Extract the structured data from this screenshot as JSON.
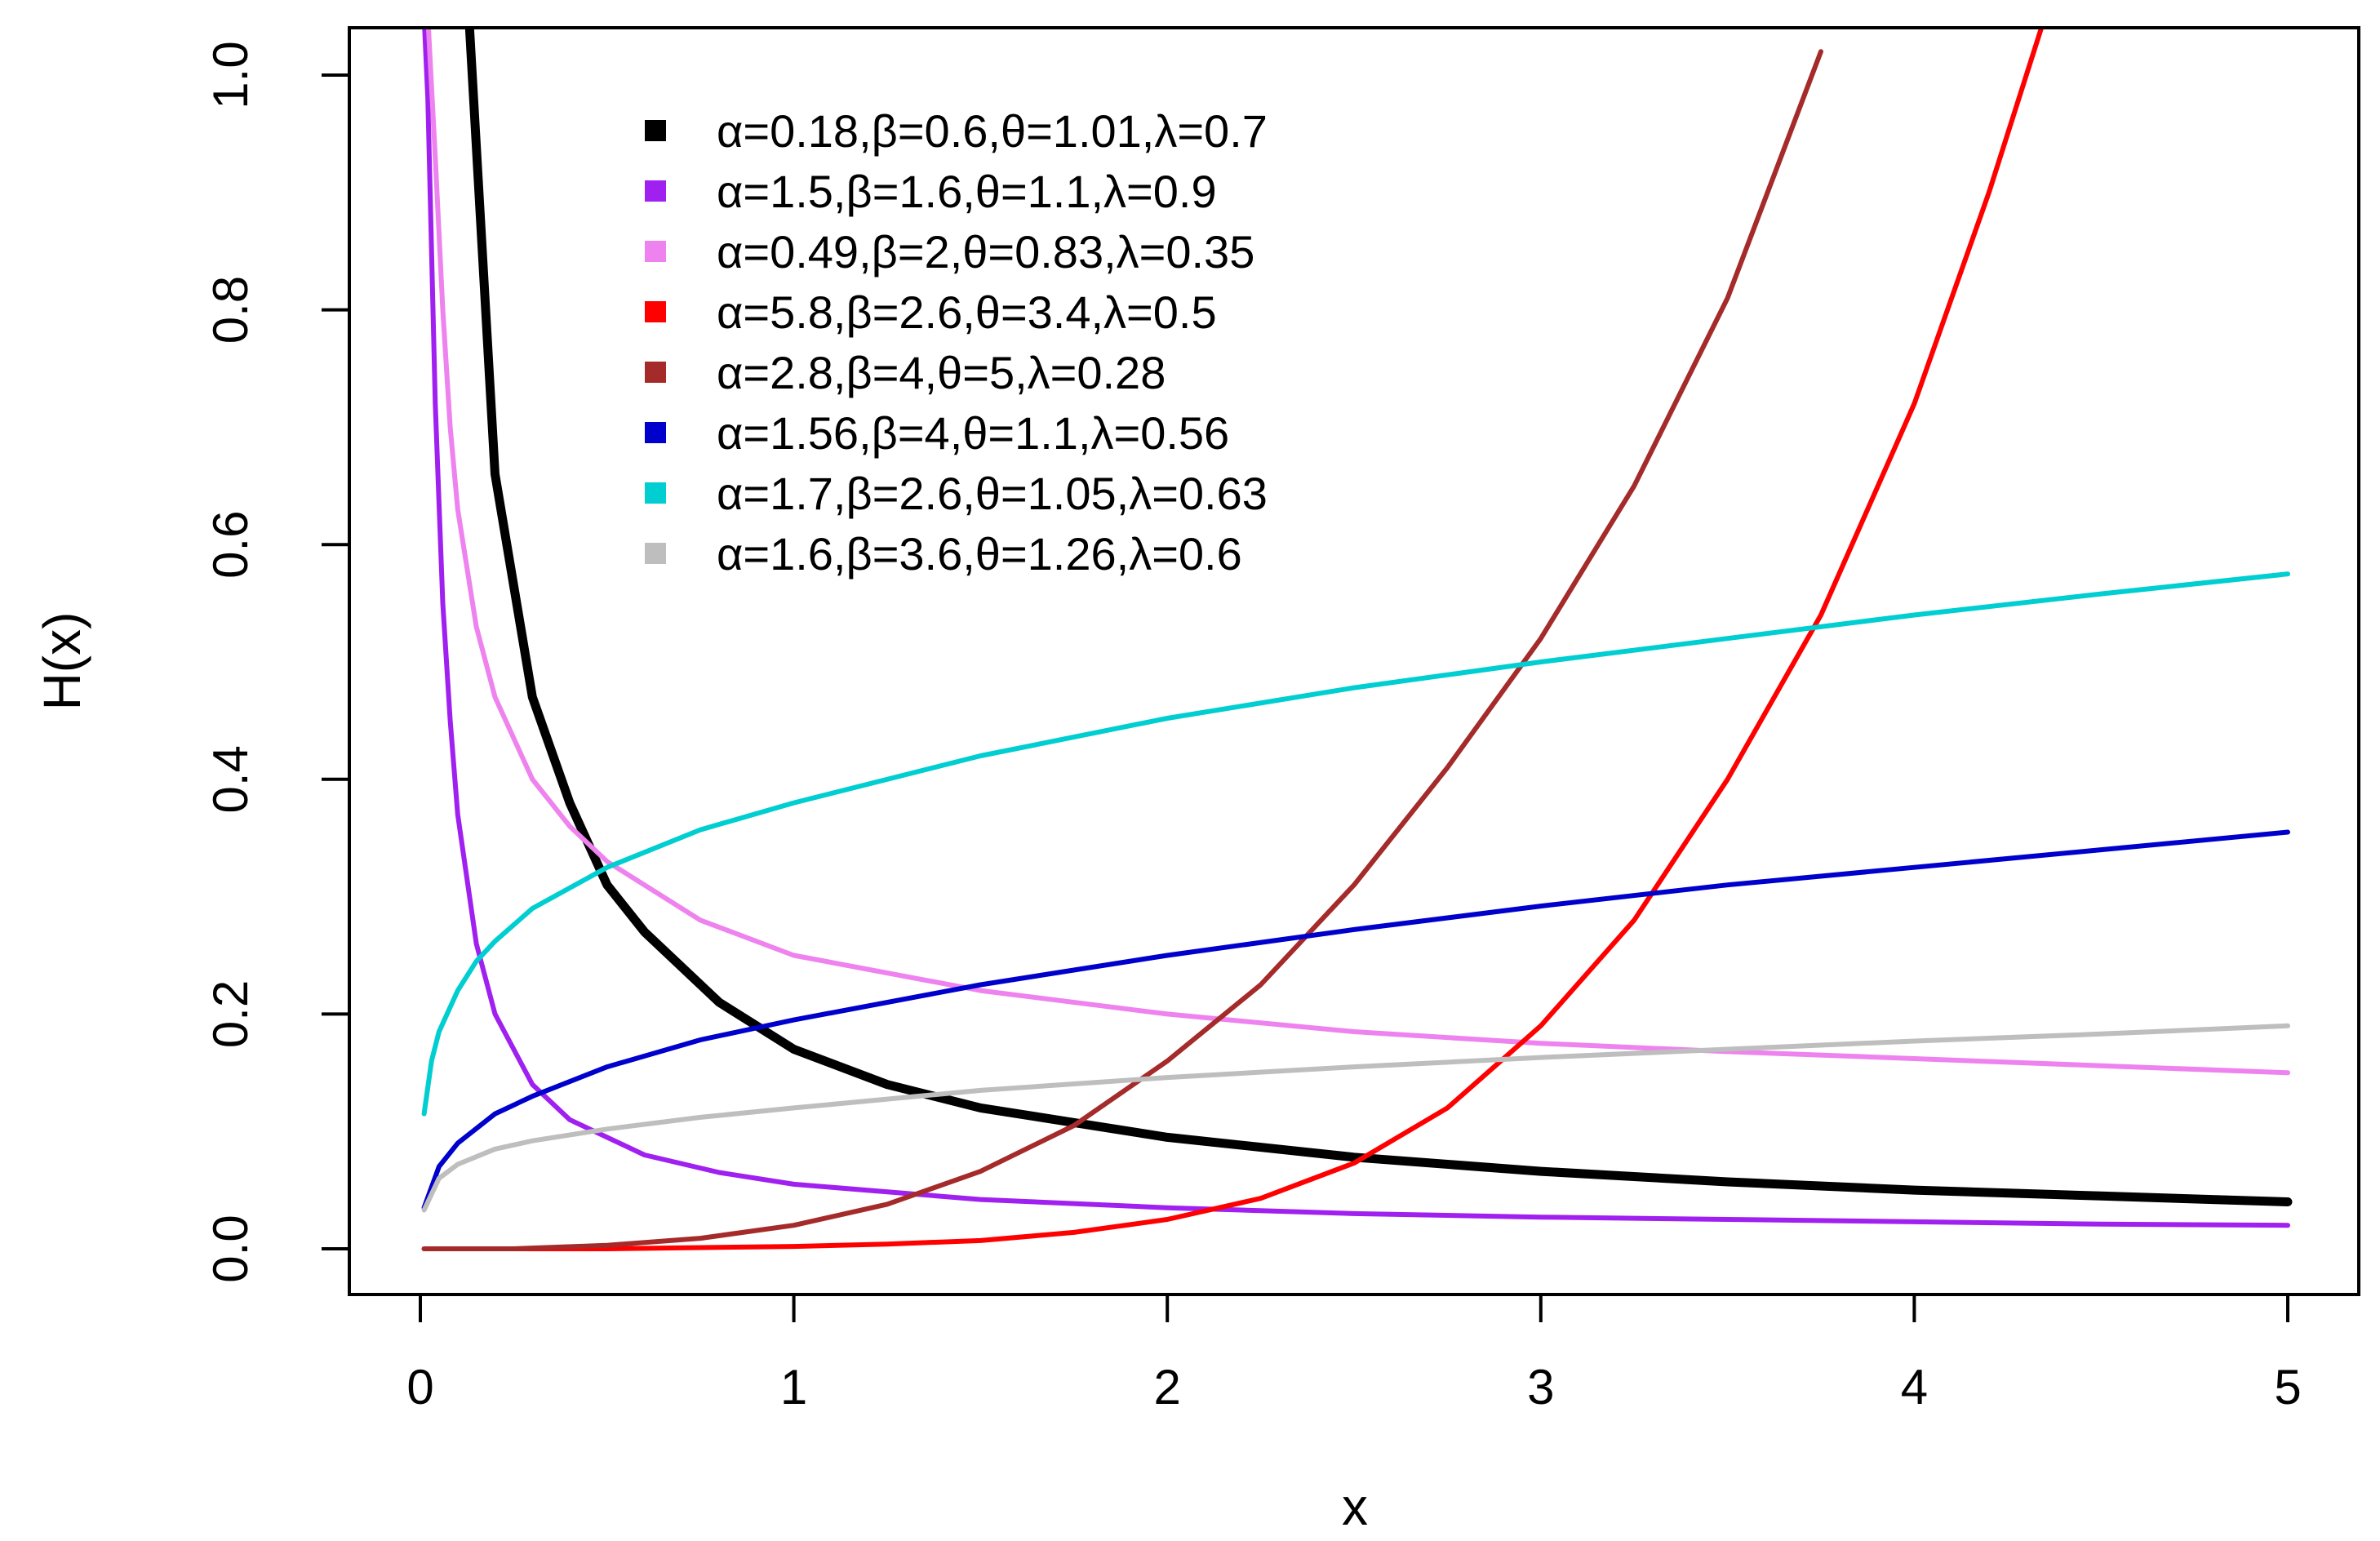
{
  "chart_data": {
    "type": "line",
    "xlabel": "x",
    "ylabel": "H(x)",
    "xlim": [
      0,
      5
    ],
    "ylim": [
      0,
      1
    ],
    "x_ticks": [
      "0",
      "1",
      "2",
      "3",
      "4",
      "5"
    ],
    "y_ticks": [
      "0.0",
      "0.2",
      "0.4",
      "0.6",
      "0.8",
      "1.0"
    ],
    "legend_position": "top",
    "series": [
      {
        "name": "α=0.18,β=0.6,θ=1.01,λ=0.7",
        "color": "#000000",
        "x": [
          0.13,
          0.2,
          0.3,
          0.4,
          0.5,
          0.6,
          0.8,
          1.0,
          1.25,
          1.5,
          2.0,
          2.5,
          3.0,
          3.5,
          4.0,
          4.5,
          5.0
        ],
        "y": [
          1.05,
          0.66,
          0.47,
          0.38,
          0.31,
          0.27,
          0.21,
          0.17,
          0.14,
          0.12,
          0.095,
          0.078,
          0.066,
          0.057,
          0.05,
          0.045,
          0.04
        ]
      },
      {
        "name": "α=1.5,β=1.6,θ=1.1,λ=0.9",
        "color": "#a020f0",
        "x": [
          0.01,
          0.02,
          0.04,
          0.06,
          0.08,
          0.1,
          0.15,
          0.2,
          0.3,
          0.4,
          0.6,
          0.8,
          1.0,
          1.5,
          2.0,
          2.5,
          3.0,
          3.5,
          4.0,
          4.5,
          5.0
        ],
        "y": [
          1.05,
          0.98,
          0.72,
          0.55,
          0.45,
          0.37,
          0.26,
          0.2,
          0.14,
          0.11,
          0.08,
          0.065,
          0.055,
          0.042,
          0.035,
          0.03,
          0.027,
          0.025,
          0.023,
          0.021,
          0.02
        ]
      },
      {
        "name": "α=0.49,β=2,θ=0.83,λ=0.35",
        "color": "#ee82ee",
        "x": [
          0.02,
          0.04,
          0.06,
          0.08,
          0.1,
          0.15,
          0.2,
          0.3,
          0.4,
          0.5,
          0.75,
          1.0,
          1.5,
          2.0,
          2.5,
          3.0,
          3.5,
          4.0,
          4.5,
          5.0
        ],
        "y": [
          1.05,
          0.93,
          0.8,
          0.7,
          0.63,
          0.53,
          0.47,
          0.4,
          0.36,
          0.33,
          0.28,
          0.25,
          0.22,
          0.2,
          0.185,
          0.175,
          0.168,
          0.162,
          0.156,
          0.15
        ]
      },
      {
        "name": "α=5.8,β=2.6,θ=3.4,λ=0.5",
        "color": "#ff0000",
        "x": [
          0.01,
          0.5,
          1.0,
          1.25,
          1.5,
          1.75,
          2.0,
          2.25,
          2.5,
          2.75,
          3.0,
          3.25,
          3.5,
          3.75,
          4.0,
          4.2,
          4.35
        ],
        "y": [
          0.0,
          0.0,
          0.002,
          0.004,
          0.007,
          0.014,
          0.025,
          0.043,
          0.073,
          0.12,
          0.19,
          0.28,
          0.4,
          0.54,
          0.72,
          0.9,
          1.05
        ]
      },
      {
        "name": "α=2.8,β=4,θ=5,λ=0.28",
        "color": "#a52a2a",
        "x": [
          0.01,
          0.25,
          0.5,
          0.75,
          1.0,
          1.25,
          1.5,
          1.75,
          2.0,
          2.25,
          2.5,
          2.75,
          3.0,
          3.25,
          3.5,
          3.75
        ],
        "y": [
          0.0,
          0.0,
          0.003,
          0.009,
          0.02,
          0.038,
          0.066,
          0.105,
          0.16,
          0.225,
          0.31,
          0.41,
          0.52,
          0.65,
          0.81,
          1.02
        ]
      },
      {
        "name": "α=1.56,β=4,θ=1.1,λ=0.56",
        "color": "#0000cd",
        "x": [
          0.01,
          0.05,
          0.1,
          0.2,
          0.3,
          0.5,
          0.75,
          1.0,
          1.5,
          2.0,
          2.5,
          3.0,
          3.5,
          4.0,
          4.5,
          5.0
        ],
        "y": [
          0.035,
          0.07,
          0.09,
          0.115,
          0.13,
          0.155,
          0.178,
          0.195,
          0.225,
          0.25,
          0.272,
          0.292,
          0.31,
          0.325,
          0.34,
          0.355
        ]
      },
      {
        "name": "α=1.7,β=2.6,θ=1.05,λ=0.63",
        "color": "#00ced1",
        "x": [
          0.01,
          0.03,
          0.05,
          0.1,
          0.15,
          0.2,
          0.3,
          0.5,
          0.75,
          1.0,
          1.5,
          2.0,
          2.5,
          3.0,
          3.5,
          4.0,
          4.5,
          5.0
        ],
        "y": [
          0.115,
          0.16,
          0.185,
          0.22,
          0.245,
          0.262,
          0.29,
          0.325,
          0.357,
          0.38,
          0.42,
          0.452,
          0.478,
          0.5,
          0.52,
          0.54,
          0.558,
          0.575
        ]
      },
      {
        "name": "α=1.6,β=3.6,θ=1.26,λ=0.6",
        "color": "#bebebe",
        "x": [
          0.01,
          0.05,
          0.1,
          0.2,
          0.3,
          0.5,
          0.75,
          1.0,
          1.5,
          2.0,
          2.5,
          3.0,
          3.5,
          4.0,
          4.5,
          5.0
        ],
        "y": [
          0.033,
          0.06,
          0.072,
          0.085,
          0.092,
          0.102,
          0.112,
          0.12,
          0.135,
          0.146,
          0.155,
          0.163,
          0.17,
          0.177,
          0.183,
          0.19
        ]
      }
    ]
  }
}
